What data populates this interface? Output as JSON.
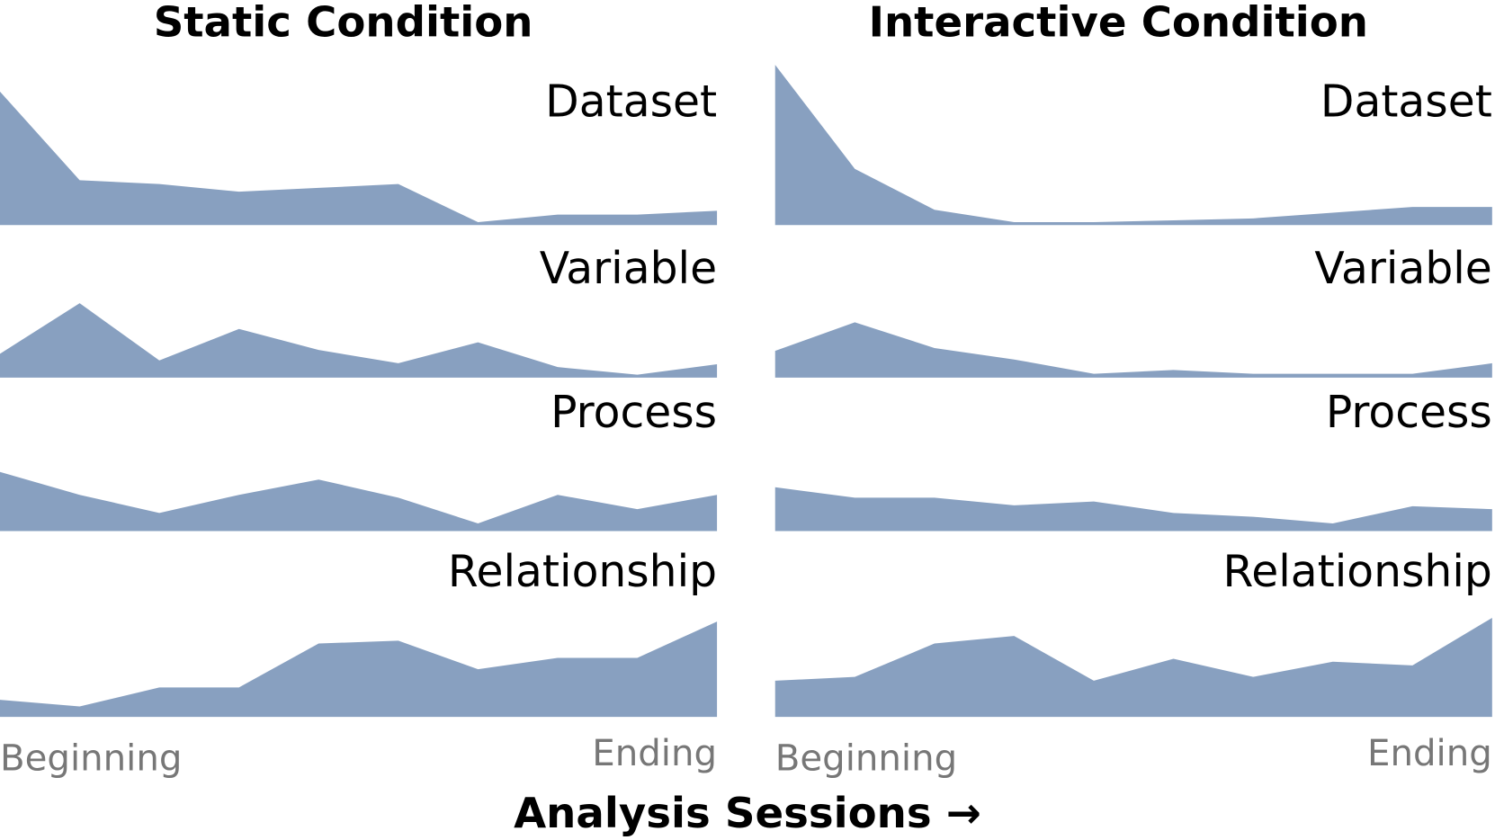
{
  "chart_data": [
    {
      "type": "area",
      "title": "Static Condition",
      "start_label": "Beginning",
      "end_label": "Ending",
      "series": [
        {
          "name": "Dataset",
          "color": "#88a0c0",
          "values": [
            140,
            47,
            43,
            35,
            39,
            43,
            3,
            11,
            11,
            15
          ]
        },
        {
          "name": "Variable",
          "color": "#88a0c0",
          "values": [
            25,
            78,
            18,
            51,
            29,
            15,
            37,
            11,
            3,
            14
          ]
        },
        {
          "name": "Process",
          "color": "#88a0c0",
          "values": [
            62,
            38,
            19,
            38,
            54,
            35,
            8,
            38,
            23,
            38
          ]
        },
        {
          "name": "Relationship",
          "color": "#88a0c0",
          "values": [
            18,
            11,
            31,
            31,
            77,
            80,
            50,
            62,
            62,
            100
          ]
        }
      ]
    },
    {
      "type": "area",
      "title": "Interactive Condition",
      "start_label": "Beginning",
      "end_label": "Ending",
      "series": [
        {
          "name": "Dataset",
          "color": "#88a0c0",
          "values": [
            168,
            59,
            16,
            3,
            3,
            5,
            7,
            13,
            19,
            19
          ]
        },
        {
          "name": "Variable",
          "color": "#88a0c0",
          "values": [
            28,
            58,
            31,
            19,
            4,
            8,
            4,
            4,
            4,
            15
          ]
        },
        {
          "name": "Process",
          "color": "#88a0c0",
          "values": [
            46,
            35,
            35,
            27,
            31,
            19,
            15,
            8,
            26,
            23
          ]
        },
        {
          "name": "Relationship",
          "color": "#88a0c0",
          "values": [
            38,
            42,
            77,
            85,
            38,
            61,
            42,
            58,
            54,
            104
          ]
        }
      ]
    }
  ],
  "xlabel": "Analysis Sessions →"
}
